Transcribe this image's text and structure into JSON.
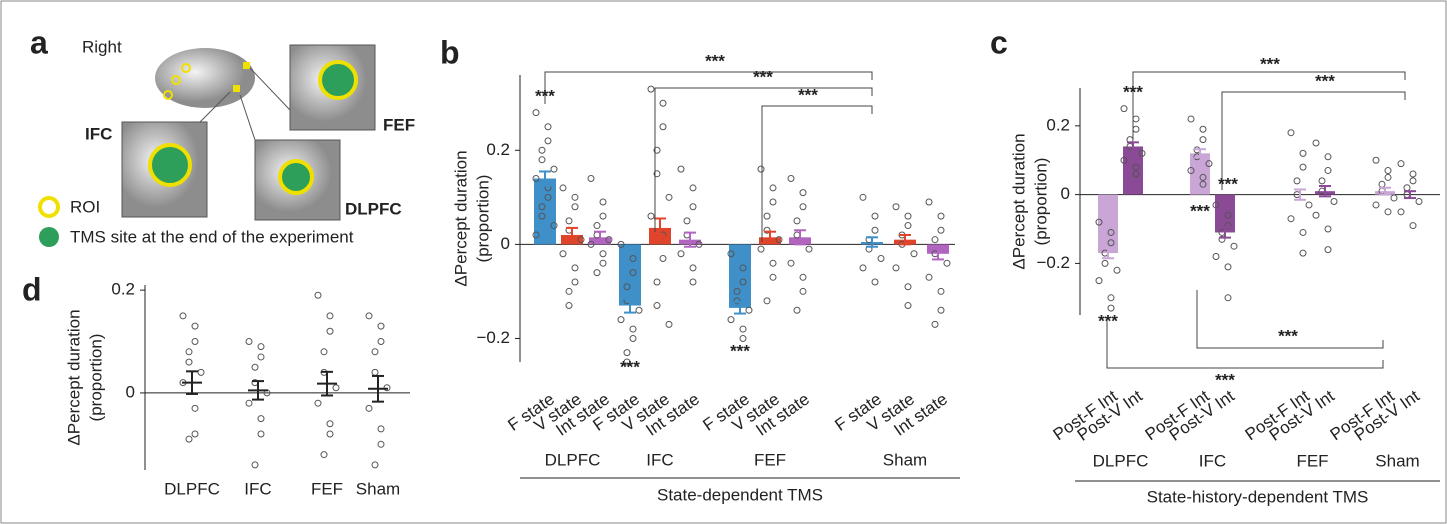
{
  "diagram": {
    "label": "a",
    "side": "Right",
    "regions": [
      "IFC",
      "FEF",
      "DLPFC"
    ],
    "legend": [
      "ROI",
      "TMS site at the end of the experiment"
    ]
  },
  "chart_data": [
    {
      "type": "bar",
      "label": "b",
      "ylabel": [
        "ΔPercept duration",
        "(proportion)"
      ],
      "xlabel": "State-dependent TMS",
      "categories": [
        "F state",
        "V state",
        "Int state",
        "F state",
        "V state",
        "Int state",
        "F state",
        "V state",
        "Int state",
        "F state",
        "V state",
        "Int state"
      ],
      "groups": [
        "DLPFC",
        "IFC",
        "FEF",
        "Sham"
      ],
      "colors": [
        "#3f8fc8",
        "#e0442b",
        "#b164c0",
        "#3f8fc8",
        "#e0442b",
        "#b164c0",
        "#3f8fc8",
        "#e0442b",
        "#b164c0",
        "#3f8fc8",
        "#e0442b",
        "#b164c0"
      ],
      "values": [
        0.14,
        0.02,
        0.015,
        -0.13,
        0.035,
        0.01,
        -0.135,
        0.015,
        0.015,
        0.005,
        0.01,
        -0.02
      ],
      "errors": [
        0.015,
        0.015,
        0.012,
        0.015,
        0.02,
        0.015,
        0.012,
        0.012,
        0.015,
        0.01,
        0.01,
        0.012
      ],
      "points": [
        [
          0.28,
          0.25,
          0.22,
          0.2,
          0.18,
          0.16,
          0.14,
          0.12,
          0.1,
          0.08,
          0.06,
          0.04,
          0.02
        ],
        [
          0.12,
          0.1,
          0.08,
          0.05,
          0.03,
          0.01,
          -0.02,
          -0.05,
          -0.08,
          -0.1,
          -0.13
        ],
        [
          0.14,
          0.09,
          0.06,
          0.04,
          0.02,
          0.01,
          0,
          -0.02,
          -0.04,
          -0.06
        ],
        [
          0,
          -0.03,
          -0.06,
          -0.09,
          -0.12,
          -0.14,
          -0.16,
          -0.18,
          -0.2,
          -0.23,
          -0.25
        ],
        [
          0.33,
          0.3,
          0.25,
          0.2,
          0.15,
          0.1,
          0.06,
          0.02,
          -0.03,
          -0.08,
          -0.13,
          -0.17
        ],
        [
          0.16,
          0.12,
          0.08,
          0.05,
          0.02,
          0,
          -0.02,
          -0.05,
          -0.08
        ],
        [
          -0.02,
          -0.05,
          -0.08,
          -0.1,
          -0.12,
          -0.14,
          -0.16,
          -0.18,
          -0.2
        ],
        [
          0.16,
          0.12,
          0.09,
          0.06,
          0.03,
          0.01,
          -0.01,
          -0.04,
          -0.07,
          -0.12
        ],
        [
          0.14,
          0.11,
          0.08,
          0.05,
          0.02,
          -0.01,
          -0.04,
          -0.07,
          -0.1,
          -0.14
        ],
        [
          0.1,
          0.06,
          0.03,
          0.01,
          -0.01,
          -0.03,
          -0.05,
          -0.08
        ],
        [
          0.08,
          0.06,
          0.04,
          0.02,
          0,
          -0.02,
          -0.05,
          -0.09,
          -0.13
        ],
        [
          0.09,
          0.06,
          0.03,
          0.01,
          -0.02,
          -0.04,
          -0.07,
          -0.1,
          -0.14,
          -0.17
        ]
      ],
      "ylim": [
        -0.25,
        0.36
      ],
      "yticks": [
        {
          "value": -0.2,
          "label": "−0.2"
        },
        0,
        0.2
      ],
      "annotations": [
        "***",
        "***",
        "***",
        "***",
        "***",
        "***"
      ]
    },
    {
      "type": "bar",
      "label": "c",
      "ylabel": [
        "ΔPercept duration",
        "(proportion)"
      ],
      "xlabel": "State-history-dependent TMS",
      "categories": [
        "Post-F Int",
        "Post-V Int",
        "Post-F Int",
        "Post-V Int",
        "Post-F Int",
        "Post-V Int",
        "Post-F Int",
        "Post-V Int"
      ],
      "groups": [
        "DLPFC",
        "IFC",
        "FEF",
        "Sham"
      ],
      "colors": [
        "#c9a6d6",
        "#8b4a95",
        "#c9a6d6",
        "#8b4a95",
        "#c9a6d6",
        "#8b4a95",
        "#c9a6d6",
        "#8b4a95"
      ],
      "values": [
        -0.17,
        0.14,
        0.12,
        -0.11,
        0.0,
        0.01,
        0.01,
        0.0
      ],
      "errors": [
        0.015,
        0.012,
        0.012,
        0.015,
        0.015,
        0.015,
        0.01,
        0.01
      ],
      "points": [
        [
          -0.08,
          -0.11,
          -0.14,
          -0.17,
          -0.2,
          -0.22,
          -0.25,
          -0.3,
          -0.33
        ],
        [
          0.25,
          0.22,
          0.19,
          0.16,
          0.14,
          0.12,
          0.1,
          0.08,
          0.06
        ],
        [
          0.22,
          0.19,
          0.16,
          0.13,
          0.11,
          0.09,
          0.07,
          0.05,
          0.03
        ],
        [
          -0.03,
          -0.06,
          -0.09,
          -0.11,
          -0.13,
          -0.15,
          -0.18,
          -0.21,
          -0.3
        ],
        [
          0.18,
          0.12,
          0.08,
          0.04,
          0,
          -0.03,
          -0.07,
          -0.11,
          -0.17
        ],
        [
          0.15,
          0.11,
          0.07,
          0.04,
          0.01,
          -0.02,
          -0.06,
          -0.1,
          -0.16
        ],
        [
          0.1,
          0.07,
          0.05,
          0.03,
          0.01,
          -0.01,
          -0.03,
          -0.05
        ],
        [
          0.09,
          0.06,
          0.04,
          0.02,
          0,
          -0.02,
          -0.05,
          -0.09
        ]
      ],
      "ylim": [
        -0.35,
        0.31
      ],
      "yticks": [
        {
          "value": -0.2,
          "label": "−0.2"
        },
        0,
        0.2
      ],
      "annotations": [
        "***",
        "***",
        "***",
        "***",
        "***",
        "***",
        "***",
        "***"
      ]
    },
    {
      "type": "dot",
      "label": "d",
      "ylabel": [
        "ΔPercept duration",
        "(proportion)"
      ],
      "categories": [
        "DLPFC",
        "IFC",
        "FEF",
        "Sham"
      ],
      "values": [
        0.02,
        0.005,
        0.018,
        0.008
      ],
      "errors": [
        0.022,
        0.018,
        0.023,
        0.025
      ],
      "points": [
        [
          0.15,
          0.13,
          0.1,
          0.08,
          0.06,
          0.04,
          0.02,
          -0.03,
          -0.08,
          -0.09
        ],
        [
          0.1,
          0.09,
          0.07,
          0.05,
          0.02,
          0,
          -0.02,
          -0.05,
          -0.08,
          -0.14
        ],
        [
          0.19,
          0.15,
          0.12,
          0.08,
          0.04,
          0.01,
          -0.02,
          -0.06,
          -0.08,
          -0.12
        ],
        [
          0.15,
          0.13,
          0.1,
          0.08,
          0.04,
          0.01,
          -0.03,
          -0.07,
          -0.1,
          -0.14
        ]
      ],
      "ylim": [
        -0.15,
        0.21
      ],
      "yticks": [
        0,
        0.2
      ]
    }
  ]
}
